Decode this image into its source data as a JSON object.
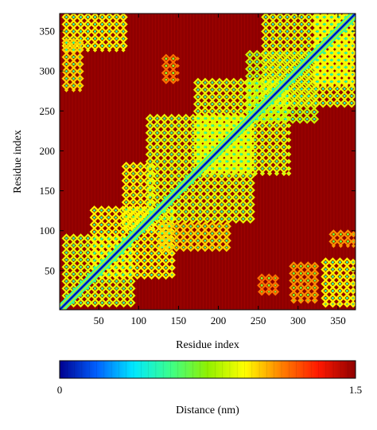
{
  "chart_data": {
    "type": "heatmap",
    "title": "",
    "xlabel": "Residue index",
    "ylabel": "Residue index",
    "xlim": [
      1,
      372
    ],
    "ylim": [
      1,
      372
    ],
    "x_ticks": [
      50,
      100,
      150,
      200,
      250,
      300,
      350
    ],
    "y_ticks": [
      50,
      100,
      150,
      200,
      250,
      300,
      350
    ],
    "colorbar": {
      "label": "Distance (nm)",
      "min": 0,
      "max": 1.5,
      "tick_labels": [
        "0",
        "1.5"
      ],
      "colormap": [
        "#00008f",
        "#0060ff",
        "#00e8ff",
        "#3cff8a",
        "#90f000",
        "#ffff00",
        "#ff8000",
        "#ff1800",
        "#8f0000"
      ]
    },
    "background_value": 1.5,
    "diagonal": {
      "from": 1,
      "to": 372,
      "value": 0
    },
    "contact_blocks": [
      {
        "x": [
          5,
          95
        ],
        "y": [
          5,
          95
        ],
        "value": 0.9
      },
      {
        "x": [
          40,
          145
        ],
        "y": [
          40,
          130
        ],
        "value": 0.95
      },
      {
        "x": [
          80,
          120
        ],
        "y": [
          100,
          185
        ],
        "value": 0.95
      },
      {
        "x": [
          110,
          245
        ],
        "y": [
          110,
          245
        ],
        "value": 0.9
      },
      {
        "x": [
          125,
          215
        ],
        "y": [
          75,
          110
        ],
        "value": 1.0
      },
      {
        "x": [
          170,
          290
        ],
        "y": [
          170,
          290
        ],
        "value": 0.9
      },
      {
        "x": [
          235,
          325
        ],
        "y": [
          235,
          325
        ],
        "value": 0.85
      },
      {
        "x": [
          255,
          372
        ],
        "y": [
          255,
          372
        ],
        "value": 0.9
      },
      {
        "x": [
          320,
          372
        ],
        "y": [
          280,
          372
        ],
        "value": 0.95
      },
      {
        "x": [
          5,
          85
        ],
        "y": [
          325,
          372
        ],
        "value": 0.95
      },
      {
        "x": [
          5,
          30
        ],
        "y": [
          275,
          340
        ],
        "value": 1.0
      },
      {
        "x": [
          330,
          372
        ],
        "y": [
          5,
          65
        ],
        "value": 0.95
      },
      {
        "x": [
          340,
          372
        ],
        "y": [
          80,
          100
        ],
        "value": 1.1
      },
      {
        "x": [
          290,
          325
        ],
        "y": [
          10,
          60
        ],
        "value": 1.1
      },
      {
        "x": [
          250,
          275
        ],
        "y": [
          20,
          45
        ],
        "value": 1.15
      },
      {
        "x": [
          130,
          150
        ],
        "y": [
          285,
          320
        ],
        "value": 1.15
      }
    ]
  }
}
